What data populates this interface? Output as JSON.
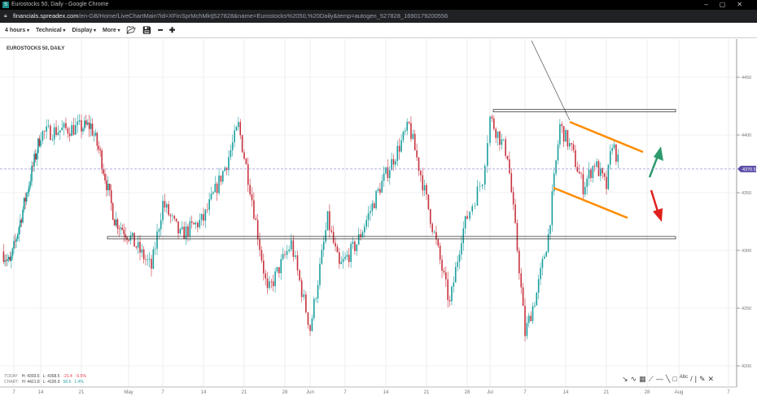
{
  "browser": {
    "title": "Eurostocks 50, Daily - Google Chrome",
    "favicon": "S",
    "url_host": "financials.spreadex.com",
    "url_path": "/en-GB/Home/LiveChartMain?id=XFinSprMchMktj527828&name=Eurostocks%2050,%20Daily&temp=autogen_527828_1690179200556"
  },
  "toolbar": {
    "interval": "4 hours",
    "technical": "Technical",
    "display": "Display",
    "more": "More"
  },
  "chart_title": "EUROSTOCKS 50, DAILY",
  "stats": {
    "today_label": "TODAY:",
    "today_high": "H: 4393.5",
    "today_low": "L: 4368.5",
    "today_change": "-21.4",
    "today_pct": "-0.5%",
    "chart_label": "CHART:",
    "chart_high": "H: 4421.8",
    "chart_low": "L: 4195.9",
    "chart_change": "58.6",
    "chart_pct": "1.4%"
  },
  "chart_data": {
    "type": "candlestick",
    "title": "EUROSTOCKS 50, DAILY",
    "y_ticks": [
      4200,
      4250,
      4300,
      4350,
      4400,
      4450
    ],
    "ylim": [
      4170,
      4485
    ],
    "current_price": 4370.5,
    "current_price_label": "4370.5",
    "x_ticks": [
      {
        "label": "7",
        "date": "2023-04-07"
      },
      {
        "label": "14",
        "date": "2023-04-14"
      },
      {
        "label": "21",
        "date": "2023-04-21"
      },
      {
        "label": "May",
        "date": "2023-05-01"
      },
      {
        "label": "7",
        "date": "2023-05-07"
      },
      {
        "label": "14",
        "date": "2023-05-14"
      },
      {
        "label": "21",
        "date": "2023-05-21"
      },
      {
        "label": "28",
        "date": "2023-05-28"
      },
      {
        "label": "Jun",
        "date": "2023-06-01"
      },
      {
        "label": "7",
        "date": "2023-06-07"
      },
      {
        "label": "14",
        "date": "2023-06-14"
      },
      {
        "label": "21",
        "date": "2023-06-21"
      },
      {
        "label": "28",
        "date": "2023-06-28"
      },
      {
        "label": "Jul",
        "date": "2023-07-01"
      },
      {
        "label": "7",
        "date": "2023-07-07"
      },
      {
        "label": "14",
        "date": "2023-07-14"
      },
      {
        "label": "21",
        "date": "2023-07-21"
      },
      {
        "label": "28",
        "date": "2023-07-28"
      },
      {
        "label": "Aug",
        "date": "2023-08-01"
      },
      {
        "label": "7",
        "date": "2023-08-07"
      }
    ],
    "approx_closes": [
      [
        "2023-04-04",
        4299
      ],
      [
        "2023-04-06",
        4288
      ],
      [
        "2023-04-14",
        4401
      ],
      [
        "2023-04-17",
        4404
      ],
      [
        "2023-04-23",
        4408
      ],
      [
        "2023-04-25",
        4383
      ],
      [
        "2023-04-28",
        4327
      ],
      [
        "2023-05-01",
        4313
      ],
      [
        "2023-05-05",
        4285
      ],
      [
        "2023-05-07",
        4341
      ],
      [
        "2023-05-10",
        4313
      ],
      [
        "2023-05-14",
        4327
      ],
      [
        "2023-05-18",
        4376
      ],
      [
        "2023-05-20",
        4408
      ],
      [
        "2023-05-22",
        4355
      ],
      [
        "2023-05-25",
        4263
      ],
      [
        "2023-05-29",
        4306
      ],
      [
        "2023-06-01",
        4232
      ],
      [
        "2023-06-04",
        4327
      ],
      [
        "2023-06-06",
        4285
      ],
      [
        "2023-06-09",
        4306
      ],
      [
        "2023-06-13",
        4355
      ],
      [
        "2023-06-18",
        4408
      ],
      [
        "2023-06-20",
        4366
      ],
      [
        "2023-06-23",
        4299
      ],
      [
        "2023-06-25",
        4253
      ],
      [
        "2023-06-27",
        4313
      ],
      [
        "2023-06-30",
        4362
      ],
      [
        "2023-07-01",
        4415
      ],
      [
        "2023-07-04",
        4383
      ],
      [
        "2023-07-06",
        4285
      ],
      [
        "2023-07-07",
        4228
      ],
      [
        "2023-07-09",
        4263
      ],
      [
        "2023-07-11",
        4313
      ],
      [
        "2023-07-13",
        4408
      ],
      [
        "2023-07-15",
        4387
      ],
      [
        "2023-07-17",
        4355
      ],
      [
        "2023-07-19",
        4376
      ],
      [
        "2023-07-21",
        4355
      ],
      [
        "2023-07-22",
        4394
      ],
      [
        "2023-07-23",
        4377
      ]
    ],
    "support_level": 4311,
    "resistance_level": 4421,
    "colors": {
      "up": "#1a9e9e",
      "down": "#c8313d",
      "price_tag": "#5b4fa8",
      "channel": "#ff8c00",
      "arrow_up": "#2e9a6e",
      "arrow_down": "#e0201e"
    }
  }
}
